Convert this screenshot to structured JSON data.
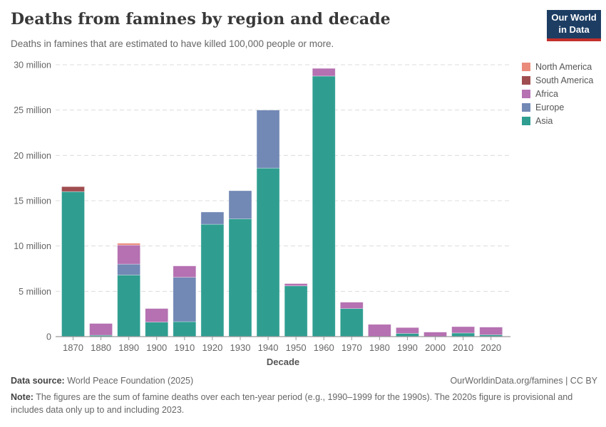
{
  "header": {
    "title": "Deaths from famines by region and decade",
    "subtitle": "Deaths in famines that are estimated to have killed 100,000 people or more.",
    "logo": {
      "line1": "Our World",
      "line2": "in Data"
    }
  },
  "chart_data": {
    "type": "bar",
    "stacked": true,
    "title": "Deaths from famines by region and decade",
    "xlabel": "Decade",
    "ylabel": "",
    "ylim": [
      0,
      30
    ],
    "yticks": [
      0,
      5,
      10,
      15,
      20,
      25,
      30
    ],
    "ytick_suffix": " million",
    "grid": "horizontal-dashed",
    "legend_position": "right",
    "categories": [
      "1870",
      "1880",
      "1890",
      "1900",
      "1910",
      "1920",
      "1930",
      "1940",
      "1950",
      "1960",
      "1970",
      "1980",
      "1990",
      "2000",
      "2010",
      "2020"
    ],
    "unit": "million deaths",
    "series": [
      {
        "name": "Asia",
        "color": "#2f9e91",
        "values": [
          16.0,
          0.15,
          6.8,
          1.6,
          1.65,
          12.4,
          13.0,
          18.6,
          5.6,
          28.75,
          3.1,
          0,
          0.35,
          0,
          0.4,
          0.2
        ]
      },
      {
        "name": "Europe",
        "color": "#7288b5",
        "values": [
          0,
          0,
          1.2,
          0,
          4.9,
          1.35,
          3.1,
          6.4,
          0,
          0,
          0,
          0,
          0,
          0,
          0,
          0
        ]
      },
      {
        "name": "Africa",
        "color": "#b571b1",
        "values": [
          0,
          1.3,
          2.1,
          1.5,
          1.25,
          0,
          0,
          0,
          0.25,
          0.85,
          0.7,
          1.35,
          0.65,
          0.5,
          0.7,
          0.85
        ]
      },
      {
        "name": "South America",
        "color": "#a04d50",
        "values": [
          0.55,
          0,
          0,
          0,
          0,
          0,
          0,
          0,
          0,
          0,
          0,
          0,
          0,
          0,
          0,
          0
        ]
      },
      {
        "name": "North America",
        "color": "#ea8b7b",
        "values": [
          0,
          0,
          0.2,
          0,
          0,
          0,
          0,
          0,
          0,
          0,
          0,
          0,
          0,
          0,
          0,
          0
        ]
      }
    ]
  },
  "footer": {
    "source_label": "Data source:",
    "source_text": " World Peace Foundation (2025)",
    "link_text": "OurWorldinData.org/famines | CC BY",
    "note_label": "Note:",
    "note_text": " The figures are the sum of famine deaths over each ten-year period (e.g., 1990–1999 for the 1990s). The 2020s figure is provisional and includes data only up to and including 2023."
  },
  "colors": {
    "asia": "#2f9e91",
    "europe": "#7288b5",
    "africa": "#b571b1",
    "south_america": "#a04d50",
    "north_america": "#ea8b7b",
    "logo_background": "#1d3d63",
    "logo_accent": "#c4302b",
    "gridline": "#dcdcdc",
    "axis": "#999999",
    "text_muted": "#666666"
  }
}
